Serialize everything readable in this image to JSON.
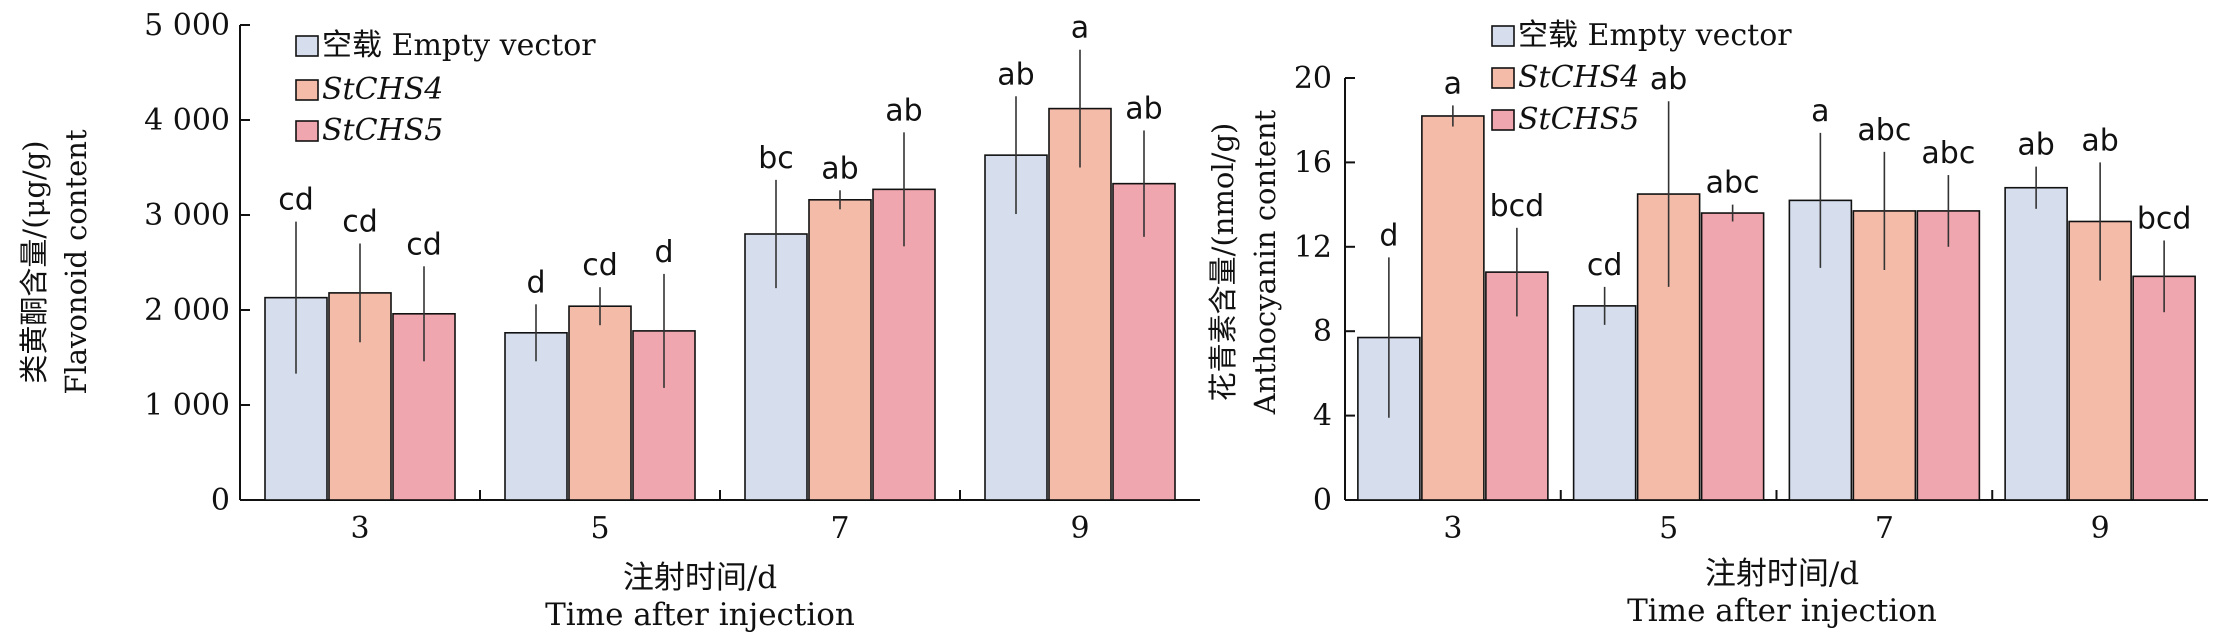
{
  "chart_data": [
    {
      "type": "bar",
      "title": "",
      "categories": [
        "3",
        "5",
        "7",
        "9"
      ],
      "ylabel_cn": "类黄酮含量/(μg/g)",
      "ylabel_en": "Flavonoid content",
      "xlabel_cn": "注射时间/d",
      "xlabel_en": "Time after injection",
      "ylim": [
        0,
        5000
      ],
      "yticks": [
        0,
        1000,
        2000,
        3000,
        4000,
        5000
      ],
      "ytick_labels": [
        "0",
        "1 000",
        "2 000",
        "3 000",
        "4 000",
        "5 000"
      ],
      "grid": false,
      "legend_position": "top-left",
      "series": [
        {
          "name_cn": "空载",
          "name_en": "Empty vector",
          "italic": false,
          "color": "#D6DEEE",
          "values": [
            2130,
            1760,
            2800,
            3630
          ],
          "errors": [
            800,
            300,
            570,
            620
          ],
          "labels": [
            "cd",
            "d",
            "bc",
            "ab"
          ]
        },
        {
          "name_cn": "",
          "name_en": "StCHS4",
          "italic": true,
          "color": "#F5BBA9",
          "values": [
            2180,
            2040,
            3160,
            4120
          ],
          "errors": [
            520,
            200,
            100,
            620
          ],
          "labels": [
            "cd",
            "cd",
            "ab",
            "a"
          ]
        },
        {
          "name_cn": "",
          "name_en": "StCHS5",
          "italic": true,
          "color": "#F0A6AE",
          "values": [
            1960,
            1780,
            3270,
            3330
          ],
          "errors": [
            500,
            600,
            600,
            560
          ],
          "labels": [
            "cd",
            "d",
            "ab",
            "ab"
          ]
        }
      ]
    },
    {
      "type": "bar",
      "title": "",
      "categories": [
        "3",
        "5",
        "7",
        "9"
      ],
      "ylabel_cn": "花青素含量/(nmol/g)",
      "ylabel_en": "Anthocyanin content",
      "xlabel_cn": "注射时间/d",
      "xlabel_en": "Time after injection",
      "ylim": [
        0,
        20
      ],
      "yticks": [
        0,
        4,
        8,
        12,
        16,
        20
      ],
      "ytick_labels": [
        "0",
        "4",
        "8",
        "12",
        "16",
        "20"
      ],
      "grid": false,
      "legend_position": "top-left",
      "series": [
        {
          "name_cn": "空载",
          "name_en": "Empty vector",
          "italic": false,
          "color": "#D6DEEE",
          "values": [
            7.7,
            9.2,
            14.2,
            14.8
          ],
          "errors": [
            3.8,
            0.9,
            3.2,
            1.0
          ],
          "labels": [
            "d",
            "cd",
            "a",
            "ab"
          ]
        },
        {
          "name_cn": "",
          "name_en": "StCHS4",
          "italic": true,
          "color": "#F5BBA9",
          "values": [
            18.2,
            14.5,
            13.7,
            13.2
          ],
          "errors": [
            0.5,
            4.4,
            2.8,
            2.8
          ],
          "labels": [
            "a",
            "ab",
            "abc",
            "ab"
          ]
        },
        {
          "name_cn": "",
          "name_en": "StCHS5",
          "italic": true,
          "color": "#F0A6AE",
          "values": [
            10.8,
            13.6,
            13.7,
            10.6
          ],
          "errors": [
            2.1,
            0.4,
            1.7,
            1.7
          ],
          "labels": [
            "bcd",
            "abc",
            "abc",
            "bcd"
          ]
        }
      ]
    }
  ]
}
